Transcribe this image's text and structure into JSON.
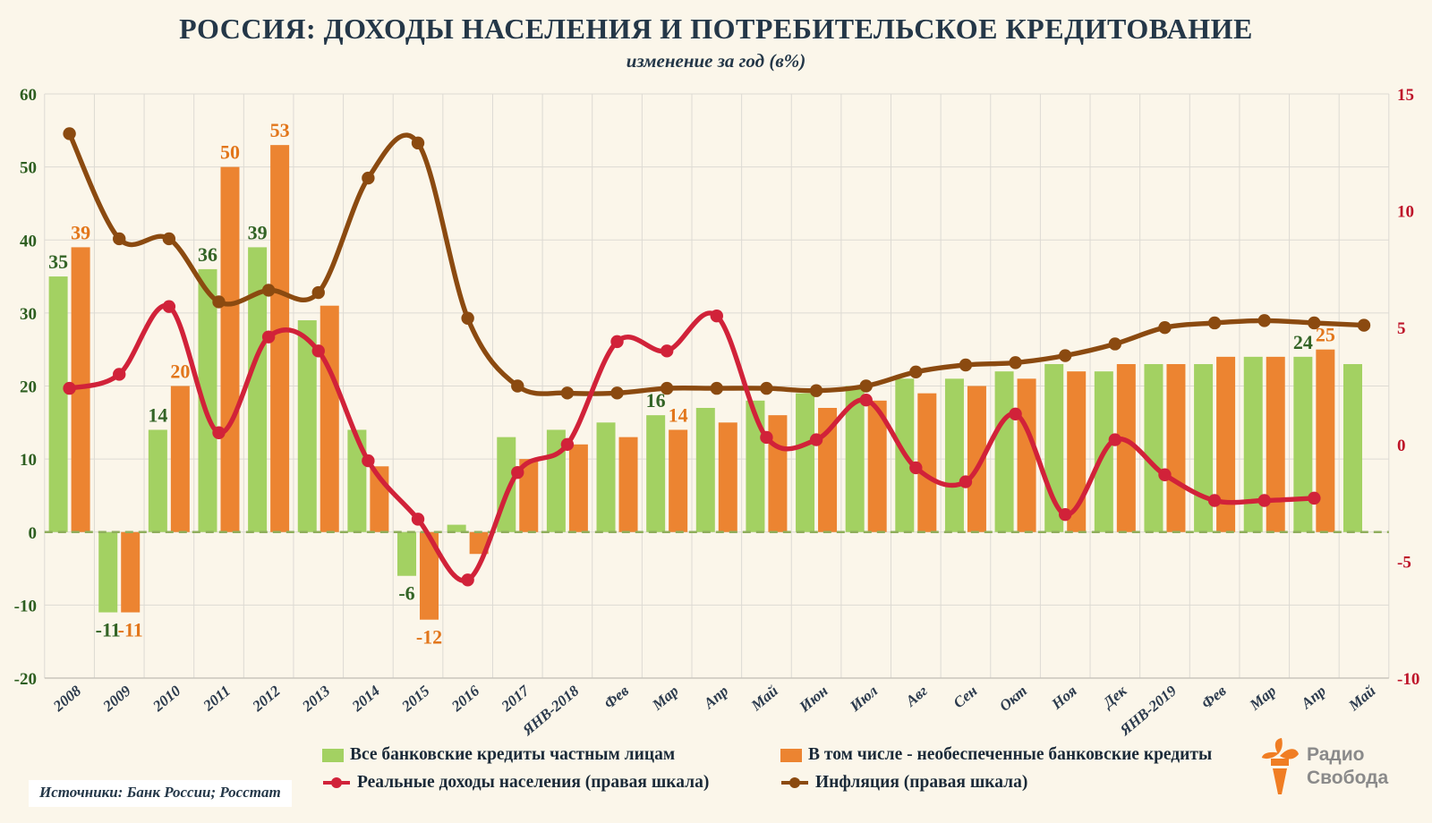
{
  "title": "РОССИЯ:  ДОХОДЫ НАСЕЛЕНИЯ И ПОТРЕБИТЕЛЬСКОЕ КРЕДИТОВАНИЕ",
  "subtitle": "изменение за год (в%)",
  "source": "Источники: Банк России; Росстат",
  "logo": {
    "line1": "Радио",
    "line2": "Свобода"
  },
  "legend": [
    {
      "label": "Все банковские кредиты частным лицам",
      "marker": "square",
      "color": "#A3D162"
    },
    {
      "label": "В том числе - необеспеченные банковские кредиты",
      "marker": "square",
      "color": "#EC8431"
    },
    {
      "label": "Реальные доходы населения (правая шкала)",
      "marker": "line-dot",
      "color": "#D12239"
    },
    {
      "label": "Инфляция (правая шкала)",
      "marker": "line-dot",
      "color": "#8B4A10"
    }
  ],
  "colors": {
    "background": "#FBF6EA",
    "grid": "#DDDAD3",
    "axis_line": "#C9C5BD",
    "title_text": "#243748",
    "x_label_text": "#2B3A4D",
    "green_bar": "#A3D162",
    "green_label": "#336426",
    "orange_bar": "#EC8431",
    "orange_label": "#E2761B",
    "income_line": "#D12239",
    "inflation_line": "#8B4A10",
    "left_axis_text": "#2D5E20",
    "right_axis_text": "#BE1429",
    "zero_line": "#8FAE5C",
    "logo_orange": "#F07D23",
    "logo_gray": "#8A8A8A"
  },
  "chart_data": {
    "type": "bar+line combo",
    "title": "РОССИЯ: ДОХОДЫ НАСЕЛЕНИЯ И ПОТРЕБИТЕЛЬСКОЕ КРЕДИТОВАНИЕ",
    "subtitle": "изменение за год (в%)",
    "grid": true,
    "legend_position": "bottom",
    "categories": [
      "2008",
      "2009",
      "2010",
      "2011",
      "2012",
      "2013",
      "2014",
      "2015",
      "2016",
      "2017",
      "ЯНВ-2018",
      "Фев",
      "Мар",
      "Апр",
      "Май",
      "Июн",
      "Июл",
      "Авг",
      "Сен",
      "Окт",
      "Ноя",
      "Дек",
      "ЯНВ-2019",
      "Фев",
      "Мар",
      "Апр",
      "Май"
    ],
    "left_axis": {
      "ticks": [
        60,
        50,
        40,
        30,
        20,
        10,
        0,
        -10,
        -20
      ],
      "min": -20,
      "max": 60
    },
    "right_axis": {
      "ticks": [
        15,
        10,
        5,
        0,
        -5,
        -10
      ],
      "min": -10,
      "max": 15
    },
    "zero_line": {
      "style": "dashed",
      "color": "#8FAE5C"
    },
    "bar_label_indices": [
      0,
      1,
      2,
      3,
      4,
      7,
      12,
      25
    ],
    "series": [
      {
        "name": "Все банковские кредиты частным лицам",
        "type": "bar",
        "axis": "left",
        "color": "#A3D162",
        "label_color": "#336426",
        "values": [
          35,
          -11,
          14,
          36,
          39,
          29,
          14,
          -6,
          1,
          13,
          14,
          15,
          16,
          17,
          18,
          19,
          20,
          21,
          21,
          22,
          23,
          22,
          23,
          23,
          24,
          24,
          23
        ]
      },
      {
        "name": "В том числе - необеспеченные банковские кредиты",
        "type": "bar",
        "axis": "left",
        "color": "#EC8431",
        "label_color": "#E2761B",
        "values": [
          39,
          -11,
          20,
          50,
          53,
          31,
          9,
          -12,
          -3,
          10,
          12,
          13,
          14,
          15,
          16,
          17,
          18,
          19,
          20,
          21,
          22,
          23,
          23,
          24,
          24,
          25,
          null
        ]
      },
      {
        "name": "Реальные доходы населения (правая шкала)",
        "type": "line",
        "axis": "right",
        "color": "#D12239",
        "values": [
          2.4,
          3.0,
          5.9,
          0.5,
          4.6,
          4.0,
          -0.7,
          -3.2,
          -5.8,
          -1.2,
          0.0,
          4.4,
          4.0,
          5.5,
          0.3,
          0.2,
          1.9,
          -1.0,
          -1.6,
          1.3,
          -3.0,
          0.2,
          -1.3,
          -2.4,
          -2.4,
          -2.3,
          null
        ]
      },
      {
        "name": "Инфляция (правая шкала)",
        "type": "line",
        "axis": "right",
        "color": "#8B4A10",
        "values": [
          13.3,
          8.8,
          8.8,
          6.1,
          6.6,
          6.5,
          11.4,
          12.9,
          5.4,
          2.5,
          2.2,
          2.2,
          2.4,
          2.4,
          2.4,
          2.3,
          2.5,
          3.1,
          3.4,
          3.5,
          3.8,
          4.3,
          5.0,
          5.2,
          5.3,
          5.2,
          5.1
        ]
      }
    ]
  }
}
